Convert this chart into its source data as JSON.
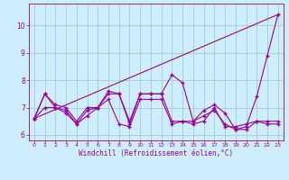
{
  "title": "",
  "xlabel": "Windchill (Refroidissement éolien,°C)",
  "ylabel": "",
  "background_color": "#cceeff",
  "grid_color": "#aacccc",
  "line_color": "#990099",
  "xlim": [
    -0.5,
    23.5
  ],
  "ylim": [
    5.8,
    10.8
  ],
  "yticks": [
    6,
    7,
    8,
    9,
    10
  ],
  "xticks": [
    0,
    1,
    2,
    3,
    4,
    5,
    6,
    7,
    8,
    9,
    10,
    11,
    12,
    13,
    14,
    15,
    16,
    17,
    18,
    19,
    20,
    21,
    22,
    23
  ],
  "series1_x": [
    0,
    1,
    2,
    3,
    4,
    5,
    6,
    7,
    8,
    9,
    10,
    11,
    12,
    13,
    14,
    15,
    16,
    17,
    18,
    19,
    20,
    21,
    22,
    23
  ],
  "series1_y": [
    6.6,
    7.5,
    7.0,
    6.9,
    6.4,
    6.9,
    7.0,
    7.5,
    7.5,
    6.4,
    7.5,
    7.5,
    7.5,
    8.2,
    7.9,
    6.5,
    6.9,
    7.1,
    6.8,
    6.2,
    6.3,
    7.4,
    8.9,
    10.4
  ],
  "series2_x": [
    0,
    1,
    2,
    3,
    4,
    5,
    6,
    7,
    8,
    9,
    10,
    11,
    12,
    13,
    14,
    15,
    16,
    17,
    18,
    19,
    20,
    21,
    22,
    23
  ],
  "series2_y": [
    6.6,
    7.0,
    7.0,
    6.8,
    6.4,
    6.7,
    7.0,
    7.3,
    6.4,
    6.3,
    7.3,
    7.3,
    7.3,
    6.4,
    6.5,
    6.5,
    6.7,
    6.9,
    6.4,
    6.2,
    6.2,
    6.5,
    6.4,
    6.4
  ],
  "series3_x": [
    0,
    1,
    2,
    3,
    4,
    5,
    6,
    7,
    8,
    9,
    10,
    11,
    12,
    13,
    14,
    15,
    16,
    17,
    18,
    19,
    20,
    21,
    22,
    23
  ],
  "series3_y": [
    6.6,
    7.5,
    7.1,
    7.0,
    6.5,
    7.0,
    7.0,
    7.6,
    7.5,
    6.5,
    7.5,
    7.5,
    7.5,
    6.5,
    6.5,
    6.4,
    6.5,
    7.0,
    6.3,
    6.3,
    6.4,
    6.5,
    6.5,
    6.5
  ],
  "series4_x": [
    0,
    23
  ],
  "series4_y": [
    6.6,
    10.4
  ]
}
